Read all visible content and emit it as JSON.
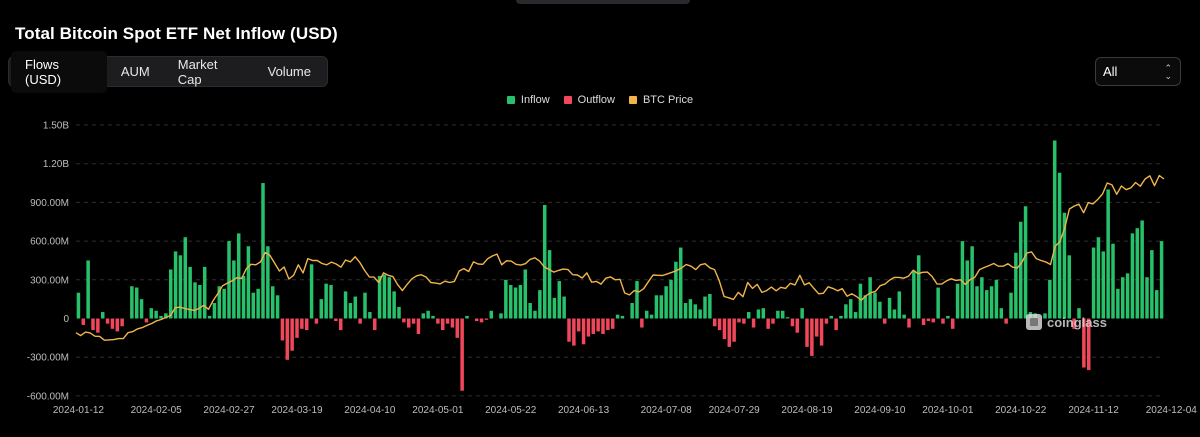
{
  "title": "Total Bitcoin Spot ETF Net Inflow (USD)",
  "tabs": [
    {
      "label": "Flows (USD)",
      "active": true
    },
    {
      "label": "AUM",
      "active": false
    },
    {
      "label": "Market Cap",
      "active": false
    },
    {
      "label": "Volume",
      "active": false
    }
  ],
  "range_select": {
    "value": "All"
  },
  "watermark": "coinglass",
  "colors": {
    "inflow": "#27c06b",
    "outflow": "#f0475a",
    "price": "#f0b54a",
    "grid": "#2e2e2e",
    "axis_text": "#bdbdbd"
  },
  "chart_data": {
    "type": "bar",
    "title": "Total Bitcoin Spot ETF Net Inflow (USD)",
    "legend": [
      "Inflow",
      "Outflow",
      "BTC Price"
    ],
    "legend_position": "top-center",
    "grid": true,
    "y_ticks": [
      "1.50B",
      "1.20B",
      "900.00M",
      "600.00M",
      "300.00M",
      "0",
      "-300.00M",
      "-600.00M"
    ],
    "y_tick_values": [
      1500,
      1200,
      900,
      600,
      300,
      0,
      -300,
      -600
    ],
    "ylim": [
      -600,
      1500
    ],
    "y_unit": "M USD",
    "x_tick_labels": [
      "2024-01-12",
      "2024-02-05",
      "2024-02-27",
      "2024-03-19",
      "2024-04-10",
      "2024-05-01",
      "2024-05-22",
      "2024-06-13",
      "2024-07-08",
      "2024-07-29",
      "2024-08-19",
      "2024-09-10",
      "2024-10-01",
      "2024-10-22",
      "2024-11-12",
      "2024-12-04"
    ],
    "x_tick_index": [
      0,
      16,
      31,
      45,
      60,
      74,
      89,
      104,
      121,
      135,
      150,
      165,
      179,
      194,
      209,
      225
    ],
    "flows": [
      200,
      -50,
      450,
      -90,
      -110,
      50,
      -40,
      -80,
      -100,
      -60,
      0,
      250,
      240,
      150,
      -30,
      80,
      60,
      20,
      40,
      380,
      520,
      490,
      630,
      400,
      280,
      260,
      400,
      20,
      120,
      250,
      230,
      600,
      450,
      660,
      330,
      560,
      200,
      230,
      1050,
      560,
      250,
      180,
      -170,
      -320,
      -250,
      -150,
      -80,
      -90,
      420,
      -40,
      150,
      270,
      260,
      -20,
      -90,
      210,
      120,
      170,
      -40,
      200,
      50,
      -90,
      330,
      340,
      320,
      210,
      90,
      -30,
      -70,
      -40,
      -120,
      40,
      60,
      20,
      -40,
      -90,
      -40,
      -70,
      -150,
      -560,
      20,
      0,
      -20,
      -30,
      -10,
      60,
      0,
      40,
      300,
      260,
      240,
      260,
      380,
      120,
      60,
      220,
      880,
      530,
      160,
      290,
      170,
      -180,
      -210,
      -100,
      -200,
      -140,
      -120,
      -100,
      -120,
      -90,
      -80,
      30,
      20,
      0,
      120,
      290,
      -70,
      60,
      30,
      180,
      180,
      250,
      300,
      440,
      550,
      120,
      150,
      110,
      70,
      170,
      190,
      -60,
      -90,
      -160,
      -220,
      -180,
      -30,
      -40,
      50,
      -70,
      70,
      80,
      -80,
      -40,
      60,
      60,
      10,
      -60,
      -110,
      80,
      -220,
      -290,
      -140,
      -210,
      -40,
      20,
      -90,
      20,
      110,
      150,
      50,
      270,
      180,
      320,
      200,
      130,
      -40,
      160,
      70,
      210,
      30,
      -70,
      370,
      490,
      -50,
      -20,
      -30,
      240,
      -40,
      20,
      -80,
      270,
      600,
      450,
      560,
      250,
      320,
      220,
      250,
      300,
      80,
      -40,
      200,
      510,
      750,
      870,
      50,
      40,
      0,
      40,
      300,
      1380,
      1130,
      820,
      490,
      -80,
      80,
      -380,
      -400,
      550,
      630,
      520,
      1000,
      580,
      230,
      320,
      350,
      660,
      700,
      760,
      320,
      530,
      220,
      600
    ],
    "btc_price_line": [
      42.6,
      41.5,
      42.8,
      42.5,
      41.3,
      41.2,
      39.8,
      39.9,
      40.0,
      40.4,
      40.4,
      42.6,
      43.0,
      44.0,
      44.5,
      45.3,
      46.0,
      47.0,
      47.5,
      48.3,
      49.0,
      51.9,
      52.1,
      51.6,
      51.2,
      50.9,
      51.6,
      52.8,
      51.3,
      54.6,
      57.2,
      60.1,
      61.1,
      61.9,
      63.1,
      62.8,
      66.4,
      68.1,
      67.9,
      69.0,
      72.5,
      71.4,
      68.5,
      65.6,
      67.1,
      62.6,
      64.0,
      67.9,
      64.9,
      70.2,
      69.5,
      69.5,
      68.4,
      67.9,
      68.9,
      68.2,
      67.0,
      69.7,
      69.0,
      70.9,
      68.8,
      65.8,
      63.4,
      63.3,
      61.3,
      64.9,
      64.0,
      63.5,
      60.5,
      58.3,
      60.6,
      62.7,
      63.8,
      64.2,
      63.3,
      61.3,
      61.1,
      60.8,
      61.8,
      61.3,
      61.7,
      65.6,
      66.5,
      65.4,
      69.0,
      68.2,
      68.1,
      70.1,
      71.2,
      71.9,
      67.9,
      69.4,
      69.3,
      68.1,
      67.8,
      68.3,
      69.9,
      70.5,
      69.3,
      67.1,
      66.2,
      65.2,
      65.8,
      66.3,
      66.1,
      64.2,
      64.1,
      63.0,
      64.9,
      61.4,
      61.7,
      60.7,
      62.9,
      63.4,
      62.3,
      62.5,
      57.4,
      56.7,
      58.3,
      57.8,
      59.0,
      61.6,
      64.1,
      64.0,
      63.9,
      64.5,
      65.1,
      65.8,
      66.7,
      68.0,
      67.4,
      66.1,
      67.9,
      68.3,
      66.8,
      66.1,
      61.9,
      56.1,
      55.6,
      55.0,
      57.6,
      56.0,
      61.3,
      59.1,
      60.6,
      57.6,
      58.3,
      59.6,
      58.2,
      59.5,
      59.1,
      61.0,
      60.4,
      64.0,
      60.4,
      61.2,
      59.1,
      57.1,
      57.3,
      59.7,
      59.1,
      58.2,
      59.0,
      56.2,
      57.1,
      56.1,
      54.7,
      56.4,
      57.5,
      58.0,
      60.1,
      60.7,
      62.2,
      63.2,
      63.2,
      62.9,
      63.7,
      65.9,
      64.6,
      65.1,
      65.2,
      63.5,
      60.8,
      60.7,
      61.9,
      62.7,
      62.1,
      62.3,
      60.6,
      62.4,
      63.2,
      66.1,
      66.9,
      67.6,
      68.4,
      67.4,
      67.4,
      68.3,
      67.0,
      66.7,
      69.0,
      72.3,
      72.7,
      70.2,
      69.5,
      69.0,
      68.0,
      74.8,
      76.5,
      81.6,
      88.7,
      89.8,
      90.5,
      87.3,
      91.1,
      90.6,
      92.3,
      94.3,
      98.4,
      97.7,
      94.2,
      97.3,
      95.9,
      96.6,
      98.6,
      97.2,
      99.9,
      101.1,
      97.4,
      101.2,
      99.9
    ],
    "btc_price_unit": "K USD (shown only as line, no price axis)"
  }
}
